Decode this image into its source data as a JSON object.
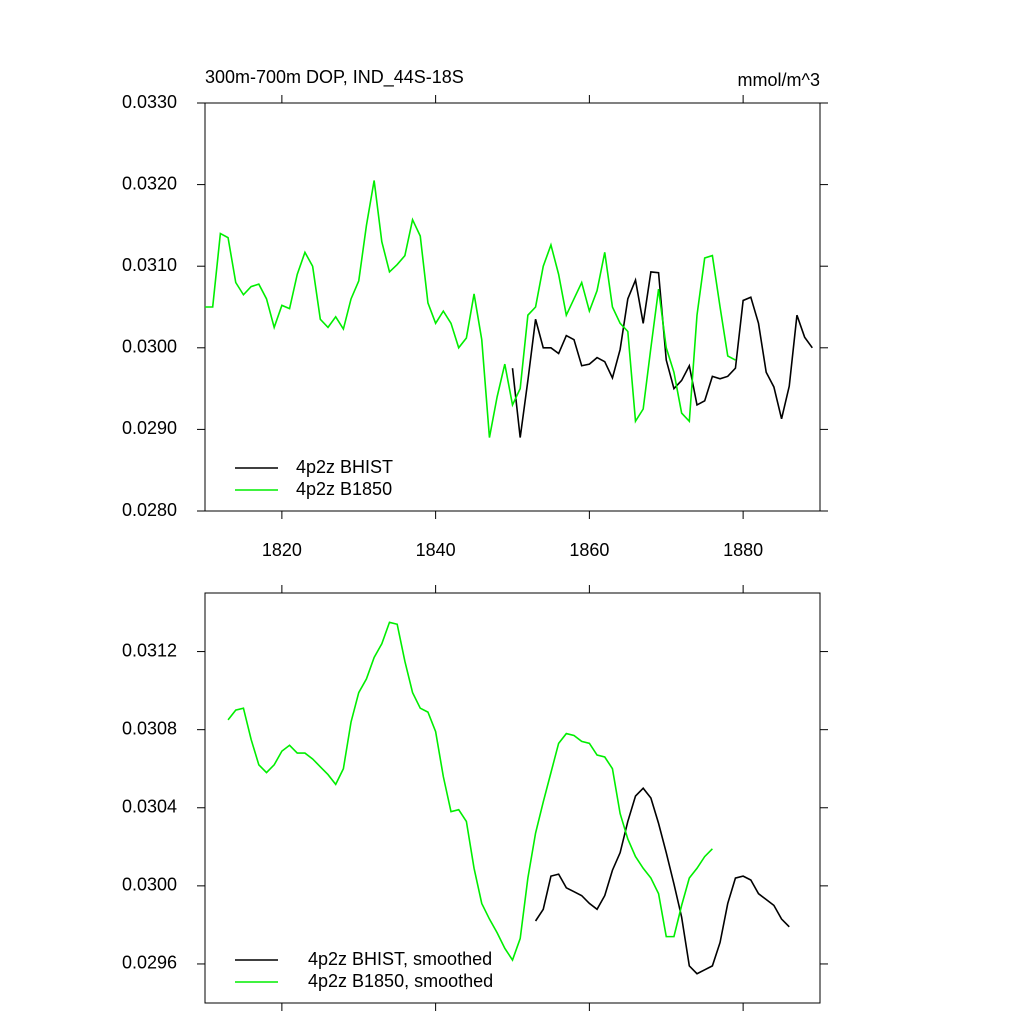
{
  "chart_data": [
    {
      "type": "line",
      "title": "300m-700m DOP, IND_44S-18S",
      "subtitle": "mmol/m^3",
      "xlim": [
        1810,
        1890
      ],
      "xticks": [
        1820,
        1840,
        1860,
        1880
      ],
      "ylim": [
        0.028,
        0.033
      ],
      "yticks": [
        {
          "value": 0.033,
          "label": "0.0330"
        },
        {
          "value": 0.032,
          "label": "0.0320"
        },
        {
          "value": 0.031,
          "label": "0.0310"
        },
        {
          "value": 0.03,
          "label": "0.0300"
        },
        {
          "value": 0.029,
          "label": "0.0290"
        },
        {
          "value": 0.028,
          "label": "0.0280"
        }
      ],
      "legend": "lower left",
      "series": [
        {
          "name": "4p2z BHIST",
          "color": "#000000",
          "x": [
            1850,
            1851,
            1852,
            1853,
            1854,
            1855,
            1856,
            1857,
            1858,
            1859,
            1860,
            1861,
            1862,
            1863,
            1864,
            1865,
            1866,
            1867,
            1868,
            1869,
            1870,
            1871,
            1872,
            1873,
            1874,
            1875,
            1876,
            1877,
            1878,
            1879,
            1880,
            1881,
            1882,
            1883,
            1884,
            1885,
            1886,
            1887,
            1888,
            1889
          ],
          "values": [
            0.02975,
            0.0289,
            0.0296,
            0.03035,
            0.03,
            0.03,
            0.02993,
            0.03015,
            0.0301,
            0.02978,
            0.0298,
            0.02988,
            0.02983,
            0.02963,
            0.02998,
            0.0306,
            0.03083,
            0.0303,
            0.03093,
            0.03092,
            0.02985,
            0.0295,
            0.0296,
            0.02978,
            0.0293,
            0.02935,
            0.02965,
            0.02962,
            0.02965,
            0.02975,
            0.03058,
            0.03062,
            0.0303,
            0.0297,
            0.02952,
            0.02913,
            0.02953,
            0.0304,
            0.03013,
            0.03
          ]
        },
        {
          "name": "4p2z B1850",
          "color": "#00ee00",
          "x": [
            1810,
            1811,
            1812,
            1813,
            1814,
            1815,
            1816,
            1817,
            1818,
            1819,
            1820,
            1821,
            1822,
            1823,
            1824,
            1825,
            1826,
            1827,
            1828,
            1829,
            1830,
            1831,
            1832,
            1833,
            1834,
            1835,
            1836,
            1837,
            1838,
            1839,
            1840,
            1841,
            1842,
            1843,
            1844,
            1845,
            1846,
            1847,
            1848,
            1849,
            1850,
            1851,
            1852,
            1853,
            1854,
            1855,
            1856,
            1857,
            1858,
            1859,
            1860,
            1861,
            1862,
            1863,
            1864,
            1865,
            1866,
            1867,
            1868,
            1869,
            1870,
            1871,
            1872,
            1873,
            1874,
            1875,
            1876,
            1877,
            1878,
            1879
          ],
          "values": [
            0.0305,
            0.0305,
            0.0314,
            0.03135,
            0.0308,
            0.03065,
            0.03075,
            0.03078,
            0.0306,
            0.03025,
            0.03052,
            0.03048,
            0.0309,
            0.03117,
            0.031,
            0.03035,
            0.03025,
            0.03038,
            0.03023,
            0.0306,
            0.03082,
            0.0315,
            0.03205,
            0.0313,
            0.03093,
            0.03102,
            0.03113,
            0.03157,
            0.03137,
            0.03055,
            0.0303,
            0.03045,
            0.0303,
            0.03,
            0.03012,
            0.03066,
            0.0301,
            0.0289,
            0.0294,
            0.0298,
            0.0293,
            0.0295,
            0.0304,
            0.0305,
            0.031,
            0.03126,
            0.0309,
            0.0304,
            0.0306,
            0.0308,
            0.03045,
            0.0307,
            0.03117,
            0.0305,
            0.0303,
            0.0302,
            0.0291,
            0.02925,
            0.03,
            0.03072,
            0.03,
            0.0297,
            0.0292,
            0.0291,
            0.0304,
            0.0311,
            0.03113,
            0.0305,
            0.0299,
            0.02985
          ]
        }
      ]
    },
    {
      "type": "line",
      "xlim": [
        1810,
        1890
      ],
      "xticks": [
        1820,
        1840,
        1860,
        1880
      ],
      "ylim": [
        0.0294,
        0.0315
      ],
      "yticks": [
        0.0312,
        0.0308,
        0.0304,
        {
          "value": 0.03,
          "label": "0.0300"
        },
        0.0296
      ],
      "legend": "lower left",
      "series": [
        {
          "name": "4p2z BHIST, smoothed",
          "color": "#000000",
          "x": [
            1853,
            1854,
            1855,
            1856,
            1857,
            1858,
            1859,
            1860,
            1861,
            1862,
            1863,
            1864,
            1865,
            1866,
            1867,
            1868,
            1869,
            1870,
            1871,
            1872,
            1873,
            1874,
            1875,
            1876,
            1877,
            1878,
            1879,
            1880,
            1881,
            1882,
            1883,
            1884,
            1885,
            1886
          ],
          "values": [
            0.02982,
            0.02988,
            0.03005,
            0.03006,
            0.02999,
            0.02997,
            0.02995,
            0.02991,
            0.02988,
            0.02995,
            0.03008,
            0.03017,
            0.03033,
            0.03046,
            0.0305,
            0.03045,
            0.03032,
            0.03017,
            0.03001,
            0.02984,
            0.02959,
            0.02955,
            0.02957,
            0.02959,
            0.02971,
            0.02991,
            0.03004,
            0.03005,
            0.03003,
            0.02996,
            0.02993,
            0.0299,
            0.02983,
            0.02979
          ]
        },
        {
          "name": "4p2z B1850, smoothed",
          "color": "#00ee00",
          "x": [
            1813,
            1814,
            1815,
            1816,
            1817,
            1818,
            1819,
            1820,
            1821,
            1822,
            1823,
            1824,
            1825,
            1826,
            1827,
            1828,
            1829,
            1830,
            1831,
            1832,
            1833,
            1834,
            1835,
            1836,
            1837,
            1838,
            1839,
            1840,
            1841,
            1842,
            1843,
            1844,
            1845,
            1846,
            1847,
            1848,
            1849,
            1850,
            1851,
            1852,
            1853,
            1854,
            1855,
            1856,
            1857,
            1858,
            1859,
            1860,
            1861,
            1862,
            1863,
            1864,
            1865,
            1866,
            1867,
            1868,
            1869,
            1870,
            1871,
            1872,
            1873,
            1874,
            1875,
            1876
          ],
          "values": [
            0.03085,
            0.0309,
            0.03091,
            0.03075,
            0.03062,
            0.03058,
            0.03062,
            0.03069,
            0.03072,
            0.03068,
            0.03068,
            0.03065,
            0.03061,
            0.03057,
            0.03052,
            0.0306,
            0.03084,
            0.03099,
            0.03106,
            0.03117,
            0.03124,
            0.03135,
            0.03134,
            0.03115,
            0.03099,
            0.03091,
            0.03089,
            0.03079,
            0.03056,
            0.03038,
            0.03039,
            0.03033,
            0.03009,
            0.02991,
            0.02983,
            0.02976,
            0.02968,
            0.02962,
            0.02973,
            0.03004,
            0.03027,
            0.03043,
            0.03058,
            0.03073,
            0.03078,
            0.03077,
            0.03074,
            0.03073,
            0.03067,
            0.03066,
            0.0306,
            0.03037,
            0.03024,
            0.03015,
            0.03009,
            0.03004,
            0.02996,
            0.02974,
            0.02974,
            0.0299,
            0.03004,
            0.03009,
            0.03015,
            0.03019
          ]
        }
      ]
    }
  ]
}
